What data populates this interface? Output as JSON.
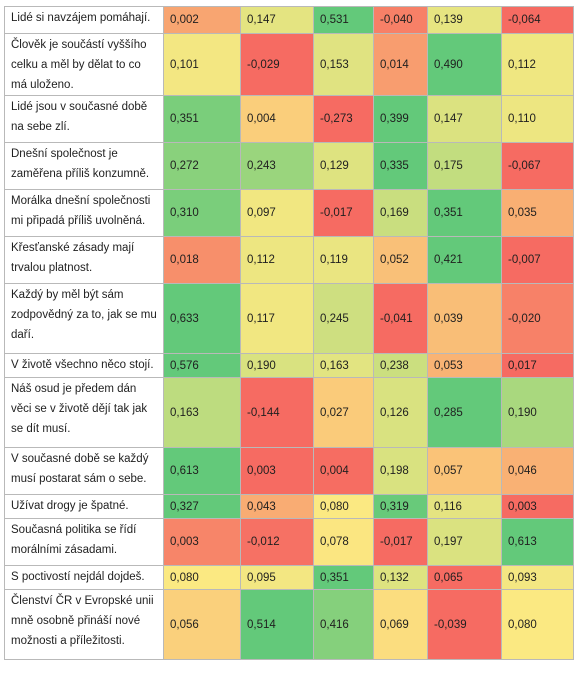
{
  "colors": {
    "scale_low": "#f66b62",
    "scale_mid": "#fbe982",
    "scale_high": "#63c97a",
    "grid": "#b9b9b9"
  },
  "rows": [
    {
      "label": "Lidé si navzájem pomáhají.",
      "values": [
        "0,002",
        "0,147",
        "0,531",
        "-0,040",
        "0,139",
        "-0,064"
      ]
    },
    {
      "label": "Člověk je součástí vyššího celku a měl by dělat to co má uloženo.",
      "values": [
        "0,101",
        "-0,029",
        "0,153",
        "0,014",
        "0,490",
        "0,112"
      ]
    },
    {
      "label": "Lidé jsou v současné době na sebe zlí.",
      "values": [
        "0,351",
        "0,004",
        "-0,273",
        "0,399",
        "0,147",
        "0,110"
      ]
    },
    {
      "label": "Dnešní společnost je zaměřena příliš konzumně.",
      "values": [
        "0,272",
        "0,243",
        "0,129",
        "0,335",
        "0,175",
        "-0,067"
      ]
    },
    {
      "label": "Morálka dnešní společnosti mi připadá příliš uvolněná.",
      "values": [
        "0,310",
        "0,097",
        "-0,017",
        "0,169",
        "0,351",
        "0,035"
      ]
    },
    {
      "label": "Křesťanské zásady mají trvalou platnost.",
      "values": [
        "0,018",
        "0,112",
        "0,119",
        "0,052",
        "0,421",
        "-0,007"
      ]
    },
    {
      "label": "Každý by měl být sám zodpovědný za to, jak se mu daří.",
      "values": [
        "0,633",
        "0,117",
        "0,245",
        "-0,041",
        "0,039",
        "-0,020"
      ]
    },
    {
      "label": "V životě všechno něco stojí.",
      "values": [
        "0,576",
        "0,190",
        "0,163",
        "0,238",
        "0,053",
        "0,017"
      ]
    },
    {
      "label": "Náš osud je předem dán věci se v životě dějí tak jak se dít musí.",
      "values": [
        "0,163",
        "-0,144",
        "0,027",
        "0,126",
        "0,285",
        "0,190"
      ]
    },
    {
      "label": "V současné době se každý musí postarat sám o sebe.",
      "values": [
        "0,613",
        "0,003",
        "0,004",
        "0,198",
        "0,057",
        "0,046"
      ]
    },
    {
      "label": "Užívat drogy je špatné.",
      "values": [
        "0,327",
        "0,043",
        "0,080",
        "0,319",
        "0,116",
        "0,003"
      ]
    },
    {
      "label": "Současná politika se řídí morálními zásadami.",
      "values": [
        "0,003",
        "-0,012",
        "0,078",
        "-0,017",
        "0,197",
        "0,613"
      ]
    },
    {
      "label": "S poctivostí nejdál dojdeš.",
      "values": [
        "0,080",
        "0,095",
        "0,351",
        "0,132",
        "0,065",
        "0,093"
      ]
    },
    {
      "label": "Členství ČR v Evropské unii mně osobně přináší nové možnosti a příležitosti.",
      "values": [
        "0,056",
        "0,514",
        "0,416",
        "0,069",
        "-0,039",
        "0,080"
      ]
    }
  ]
}
